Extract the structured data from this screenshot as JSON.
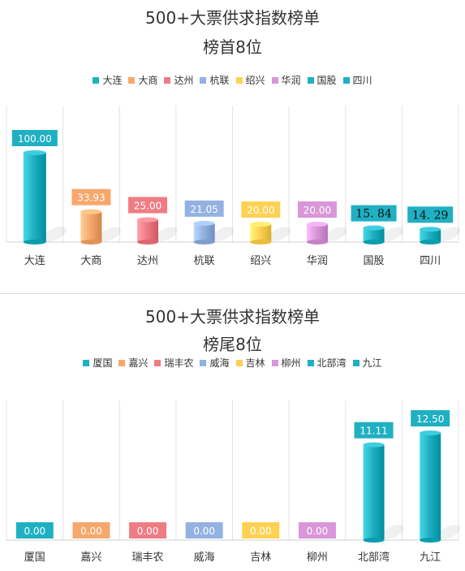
{
  "chart_data": [
    {
      "type": "bar",
      "title": "500+大票供求指数榜单",
      "subtitle": "榜首8位",
      "categories": [
        "大连",
        "大商",
        "达州",
        "杭联",
        "绍兴",
        "华润",
        "国股",
        "四川"
      ],
      "values": [
        100.0,
        33.93,
        25.0,
        21.05,
        20.0,
        20.0,
        15.84,
        14.29
      ],
      "value_labels": [
        "100.00",
        "33.93",
        "25.00",
        "21.05",
        "20.00",
        "20.00",
        "15. 84",
        "14. 29"
      ],
      "colors": [
        "#1fb0c2",
        "#f6a86c",
        "#ef7c84",
        "#93b2e2",
        "#fdd154",
        "#d996d9",
        "#1fb0c2",
        "#1fb0c2"
      ],
      "legend": [
        "大连",
        "大商",
        "达州",
        "杭联",
        "绍兴",
        "华润",
        "国股",
        "四川"
      ],
      "legend_position": "top",
      "ylim": [
        0,
        100
      ],
      "grid": "vertical"
    },
    {
      "type": "bar",
      "title": "500+大票供求指数榜单",
      "subtitle": "榜尾8位",
      "categories": [
        "厦国",
        "嘉兴",
        "瑞丰农",
        "威海",
        "吉林",
        "柳州",
        "北部湾",
        "九江"
      ],
      "values": [
        0.0,
        0.0,
        0.0,
        0.0,
        0.0,
        0.0,
        11.11,
        12.5
      ],
      "value_labels": [
        "0.00",
        "0.00",
        "0.00",
        "0.00",
        "0.00",
        "0.00",
        "11.11",
        "12.50"
      ],
      "colors": [
        "#1fb0c2",
        "#f6a86c",
        "#ef7c84",
        "#93b2e2",
        "#fdd154",
        "#d996d9",
        "#1fb0c2",
        "#1fb0c2"
      ],
      "legend": [
        "厦国",
        "嘉兴",
        "瑞丰农",
        "威海",
        "吉林",
        "柳州",
        "北部湾",
        "九江"
      ],
      "legend_position": "top",
      "ylim": [
        0,
        12.5
      ],
      "grid": "vertical"
    }
  ]
}
